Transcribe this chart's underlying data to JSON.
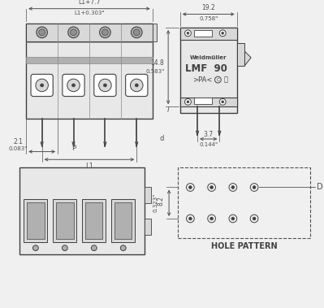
{
  "bg_color": "#f0f0f0",
  "line_color": "#404040",
  "dim_color": "#505050",
  "light_line": "#888888",
  "fill_body": "#d8d8d8",
  "fill_dark": "#b0b0b0",
  "fill_darker": "#909090",
  "fill_light": "#e8e8e8",
  "fill_white": "#ffffff",
  "dim_top_text1": "L1+7.7",
  "dim_top_text2": "L1+0.303\"",
  "dim_right_w_text1": "19.2",
  "dim_right_w_text2": "0.758\"",
  "dim_side_h_text1": "14.8",
  "dim_side_h_text2": "0.583\"",
  "dim_side_h2_text": "l",
  "dim_left_text1": "2.1",
  "dim_left_text2": "0.083\"",
  "dim_P_text": "P",
  "dim_d_text": "d",
  "dim_L1_text": "L1",
  "dim_bot_text1": "3.7",
  "dim_bot_text2": "0.144\"",
  "dim_hole_h_text1": "8.2",
  "dim_hole_h_text2": "0.323\"",
  "dim_D_text": "D",
  "hole_pattern_text": "HOLE PATTERN",
  "brand_text": "Weidmüller",
  "model_text": "LMF  90",
  "cert_text": ">PA<",
  "n_poles": 4
}
